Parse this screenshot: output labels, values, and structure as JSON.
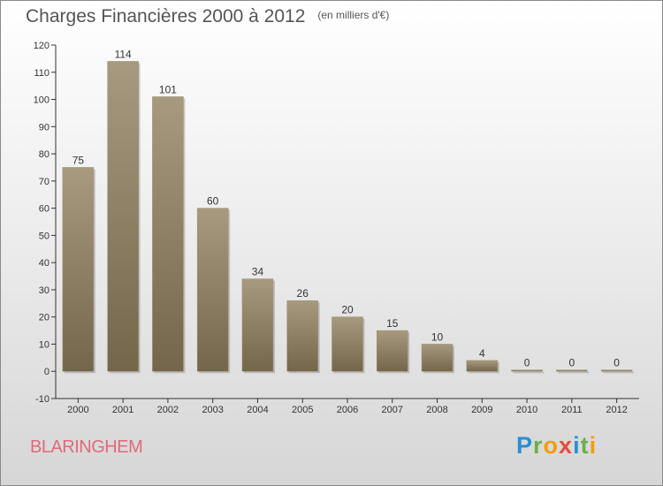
{
  "title": "Charges Financières 2000 à 2012",
  "subtitle": "(en milliers d'€)",
  "commune": "BLARINGHEM",
  "logo": {
    "letters": [
      "P",
      "r",
      "o",
      "x",
      "i",
      "t",
      "i"
    ],
    "colors": [
      "#2b8fd0",
      "#6ab04c",
      "#f39c12",
      "#e74c3c",
      "#2b8fd0",
      "#6ab04c",
      "#f39c12"
    ]
  },
  "colors": {
    "bar_light": "#a79a7f",
    "bar_dark": "#74664a",
    "axis": "#333333",
    "grid": "#cccccc",
    "text": "#333333"
  },
  "chart_data": {
    "type": "bar",
    "title": "Charges Financières 2000 à 2012",
    "subtitle": "(en milliers d'€)",
    "categories": [
      "2000",
      "2001",
      "2002",
      "2003",
      "2004",
      "2005",
      "2006",
      "2007",
      "2008",
      "2009",
      "2010",
      "2011",
      "2012"
    ],
    "values": [
      75,
      114,
      101,
      60,
      34,
      26,
      20,
      15,
      10,
      4,
      0,
      0,
      0
    ],
    "ylim": [
      -10,
      120
    ],
    "yticks": [
      -10,
      0,
      10,
      20,
      30,
      40,
      50,
      60,
      70,
      80,
      90,
      100,
      110,
      120
    ],
    "xlabel": "",
    "ylabel": "",
    "grid": false
  }
}
